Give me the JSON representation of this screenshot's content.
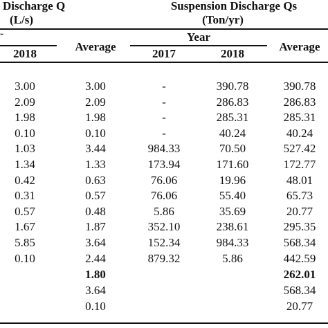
{
  "header": {
    "discharge_title": "Discharge Q",
    "discharge_unit": "(L/s)",
    "suspension_title": "Suspension Discharge Qs",
    "suspension_unit": "(Ton/yr)",
    "dot": "-",
    "year_label": "Year",
    "col_2018_left": "2018",
    "avg_left": "Average",
    "col_2017": "2017",
    "col_2018_right": "2018",
    "avg_right": "Average"
  },
  "rows": [
    {
      "q2018": "3.00",
      "qavg": "3.00",
      "s2017": "-",
      "s2018": "390.78",
      "savg": "390.78"
    },
    {
      "q2018": "2.09",
      "qavg": "2.09",
      "s2017": "-",
      "s2018": "286.83",
      "savg": "286.83"
    },
    {
      "q2018": "1.98",
      "qavg": "1.98",
      "s2017": "-",
      "s2018": "285.31",
      "savg": "285.31"
    },
    {
      "q2018": "0.10",
      "qavg": "0.10",
      "s2017": "-",
      "s2018": "40.24",
      "savg": "40.24"
    },
    {
      "q2018": "1.03",
      "qavg": "3.44",
      "s2017": "984.33",
      "s2018": "70.50",
      "savg": "527.42"
    },
    {
      "q2018": "1.34",
      "qavg": "1.33",
      "s2017": "173.94",
      "s2018": "171.60",
      "savg": "172.77"
    },
    {
      "q2018": "0.42",
      "qavg": "0.63",
      "s2017": "76.06",
      "s2018": "19.96",
      "savg": "48.01"
    },
    {
      "q2018": "0.31",
      "qavg": "0.57",
      "s2017": "76.06",
      "s2018": "55.40",
      "savg": "65.73"
    },
    {
      "q2018": "0.57",
      "qavg": "0.48",
      "s2017": "5.86",
      "s2018": "35.69",
      "savg": "20.77"
    },
    {
      "q2018": "1.67",
      "qavg": "1.87",
      "s2017": "352.10",
      "s2018": "238.61",
      "savg": "295.35"
    },
    {
      "q2018": "5.85",
      "qavg": "3.64",
      "s2017": "152.34",
      "s2018": "984.33",
      "savg": "568.34"
    },
    {
      "q2018": "0.10",
      "qavg": "2.44",
      "s2017": "879.32",
      "s2018": "5.86",
      "savg": "442.59"
    }
  ],
  "summary": [
    {
      "qavg": "1.80",
      "savg": "262.01",
      "bold": true
    },
    {
      "qavg": "3.64",
      "savg": "568.34",
      "bold": false
    },
    {
      "qavg": "0.10",
      "savg": "20.77",
      "bold": false
    }
  ]
}
